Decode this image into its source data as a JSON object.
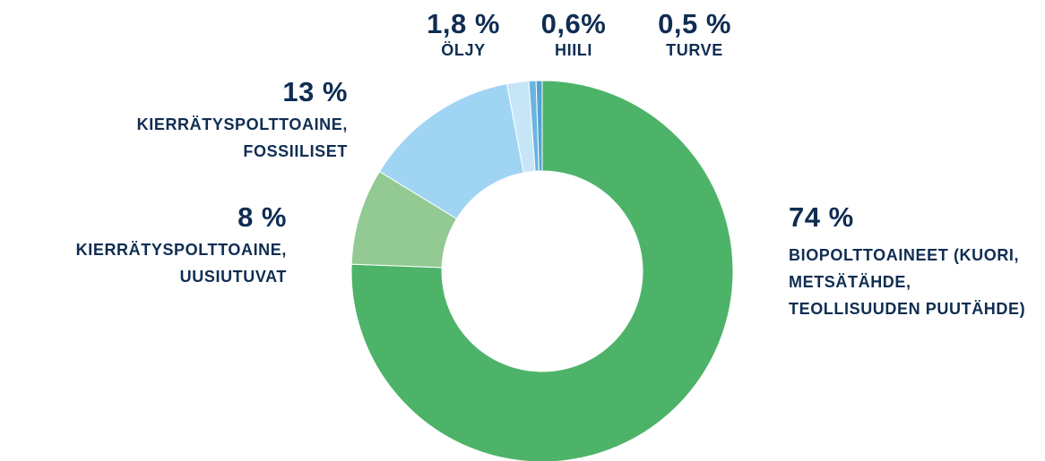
{
  "chart_data": {
    "type": "donut",
    "categories": [
      "BIOPOLTTOAINEET (KUORI, METSÄTÄHDE, TEOLLISUUDEN PUUTÄHDE)",
      "KIERRÄTYSPOLTTOAINE, UUSIUTUVAT",
      "KIERRÄTYSPOLTTOAINE, FOSSIILISET",
      "ÖLJY",
      "HIILI",
      "TURVE"
    ],
    "values": [
      74,
      8,
      13,
      1.8,
      0.6,
      0.5
    ],
    "value_labels": [
      "74 %",
      "8 %",
      "13 %",
      "1,8 %",
      "0,6%",
      "0,5 %"
    ],
    "colors": [
      "#4db368",
      "#93c993",
      "#a0d4f3",
      "#c6e6f8",
      "#6cb4e0",
      "#52a3d3"
    ]
  }
}
